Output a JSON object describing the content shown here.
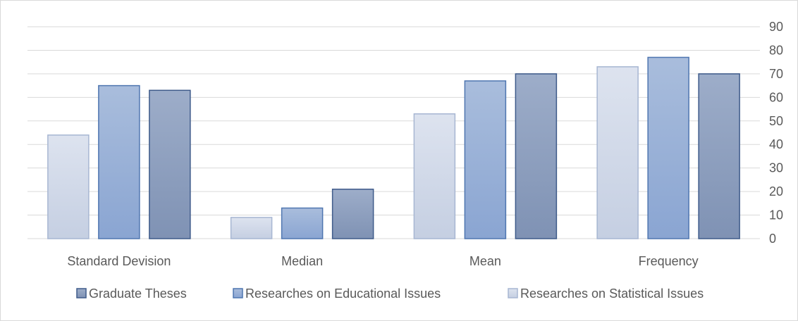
{
  "chart_data": {
    "type": "bar",
    "categories": [
      "Standard Devision",
      "Median",
      "Mean",
      "Frequency"
    ],
    "series": [
      {
        "name": "Researches on Statistical Issues",
        "values": [
          44,
          9,
          53,
          73
        ],
        "fill_top": "#dde3ef",
        "fill_bottom": "#c5cfe2",
        "stroke": "#a7b6d2"
      },
      {
        "name": "Researches on Educational Issues",
        "values": [
          65,
          13,
          67,
          77
        ],
        "fill_top": "#a9bddc",
        "fill_bottom": "#8aa5d2",
        "stroke": "#4f76b0"
      },
      {
        "name": "Graduate Theses",
        "values": [
          63,
          21,
          70,
          70
        ],
        "fill_top": "#9dadc9",
        "fill_bottom": "#7f92b4",
        "stroke": "#3f5b8a"
      }
    ],
    "legend_order": [
      2,
      1,
      0
    ],
    "ylim": [
      0,
      90
    ],
    "yticks": [
      0,
      10,
      20,
      30,
      40,
      50,
      60,
      70,
      80,
      90
    ],
    "y_axis_side": "right",
    "grid": true,
    "legend_position": "bottom",
    "colors": {
      "grid": "#d9d9d9",
      "text": "#595959",
      "frame": "#d9d9d9"
    }
  }
}
